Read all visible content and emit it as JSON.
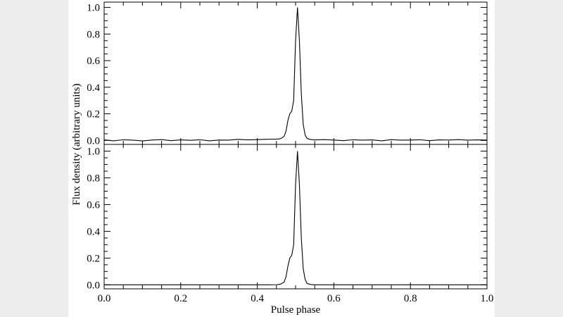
{
  "chart_data": [
    {
      "type": "line",
      "ylabel": "Flux density (arbitrary units)",
      "x": [
        0,
        0.025,
        0.05,
        0.075,
        0.1,
        0.125,
        0.15,
        0.175,
        0.2,
        0.225,
        0.25,
        0.275,
        0.3,
        0.325,
        0.35,
        0.375,
        0.4,
        0.425,
        0.45,
        0.46,
        0.47,
        0.475,
        0.48,
        0.485,
        0.49,
        0.495,
        0.5,
        0.505,
        0.51,
        0.515,
        0.52,
        0.525,
        0.53,
        0.54,
        0.55,
        0.575,
        0.6,
        0.625,
        0.65,
        0.675,
        0.7,
        0.725,
        0.75,
        0.775,
        0.8,
        0.825,
        0.85,
        0.875,
        0.9,
        0.925,
        0.95,
        0.975,
        1.0
      ],
      "values": [
        0.004,
        -0.003,
        0.005,
        0.002,
        -0.004,
        0.003,
        0.006,
        -0.002,
        0.004,
        0.001,
        0.005,
        -0.003,
        0.003,
        0.002,
        0.008,
        0.004,
        0.006,
        0.009,
        0.01,
        0.012,
        0.03,
        0.07,
        0.15,
        0.2,
        0.22,
        0.3,
        0.75,
        1.0,
        0.75,
        0.35,
        0.12,
        0.04,
        0.015,
        0.006,
        0.004,
        0.006,
        0.003,
        -0.002,
        0.005,
        0.002,
        0.004,
        -0.003,
        0.006,
        0.002,
        0.003,
        0.005,
        -0.002,
        0.004,
        0.003,
        0.006,
        0.002,
        0.004,
        0.003
      ],
      "color": "#000000",
      "xlim": [
        0,
        1
      ],
      "ylim": [
        -0.03,
        1.04
      ],
      "yticks": [
        {
          "value": 0,
          "label": "0.0"
        },
        {
          "value": 0.2,
          "label": "0.2"
        },
        {
          "value": 0.4,
          "label": "0.4"
        },
        {
          "value": 0.6,
          "label": "0.6"
        },
        {
          "value": 0.8,
          "label": "0.8"
        },
        {
          "value": 1,
          "label": "1.0"
        }
      ]
    },
    {
      "type": "line",
      "xlabel": "Pulse phase",
      "x": [
        0,
        0.025,
        0.05,
        0.075,
        0.1,
        0.125,
        0.15,
        0.175,
        0.2,
        0.225,
        0.25,
        0.275,
        0.3,
        0.325,
        0.35,
        0.375,
        0.4,
        0.425,
        0.45,
        0.46,
        0.47,
        0.475,
        0.48,
        0.485,
        0.49,
        0.495,
        0.5,
        0.505,
        0.51,
        0.515,
        0.52,
        0.525,
        0.53,
        0.54,
        0.55,
        0.575,
        0.6,
        0.625,
        0.65,
        0.675,
        0.7,
        0.725,
        0.75,
        0.775,
        0.8,
        0.825,
        0.85,
        0.875,
        0.9,
        0.925,
        0.95,
        0.975,
        1.0
      ],
      "values": [
        0,
        0,
        0,
        0,
        0,
        0,
        0,
        0,
        0,
        0,
        0,
        0,
        0,
        0,
        0,
        0,
        0,
        0,
        0.001,
        0.004,
        0.02,
        0.06,
        0.14,
        0.2,
        0.22,
        0.3,
        0.75,
        1.0,
        0.75,
        0.35,
        0.12,
        0.04,
        0.01,
        0.002,
        0,
        0,
        0,
        0,
        0,
        0,
        0,
        0,
        0,
        0,
        0,
        0,
        0,
        0,
        0,
        0,
        0,
        0,
        0
      ],
      "color": "#000000",
      "xlim": [
        0,
        1
      ],
      "ylim": [
        -0.03,
        1.05
      ],
      "xticks": [
        {
          "value": 0,
          "label": "0.0"
        },
        {
          "value": 0.2,
          "label": "0.2"
        },
        {
          "value": 0.4,
          "label": "0.4"
        },
        {
          "value": 0.6,
          "label": "0.6"
        },
        {
          "value": 0.8,
          "label": "0.8"
        },
        {
          "value": 1,
          "label": "1.0"
        }
      ],
      "yticks": [
        {
          "value": 0,
          "label": "0.0"
        },
        {
          "value": 0.2,
          "label": "0.2"
        },
        {
          "value": 0.4,
          "label": "0.4"
        },
        {
          "value": 0.6,
          "label": "0.6"
        },
        {
          "value": 0.8,
          "label": "0.8"
        },
        {
          "value": 1,
          "label": "1.0"
        }
      ]
    }
  ]
}
